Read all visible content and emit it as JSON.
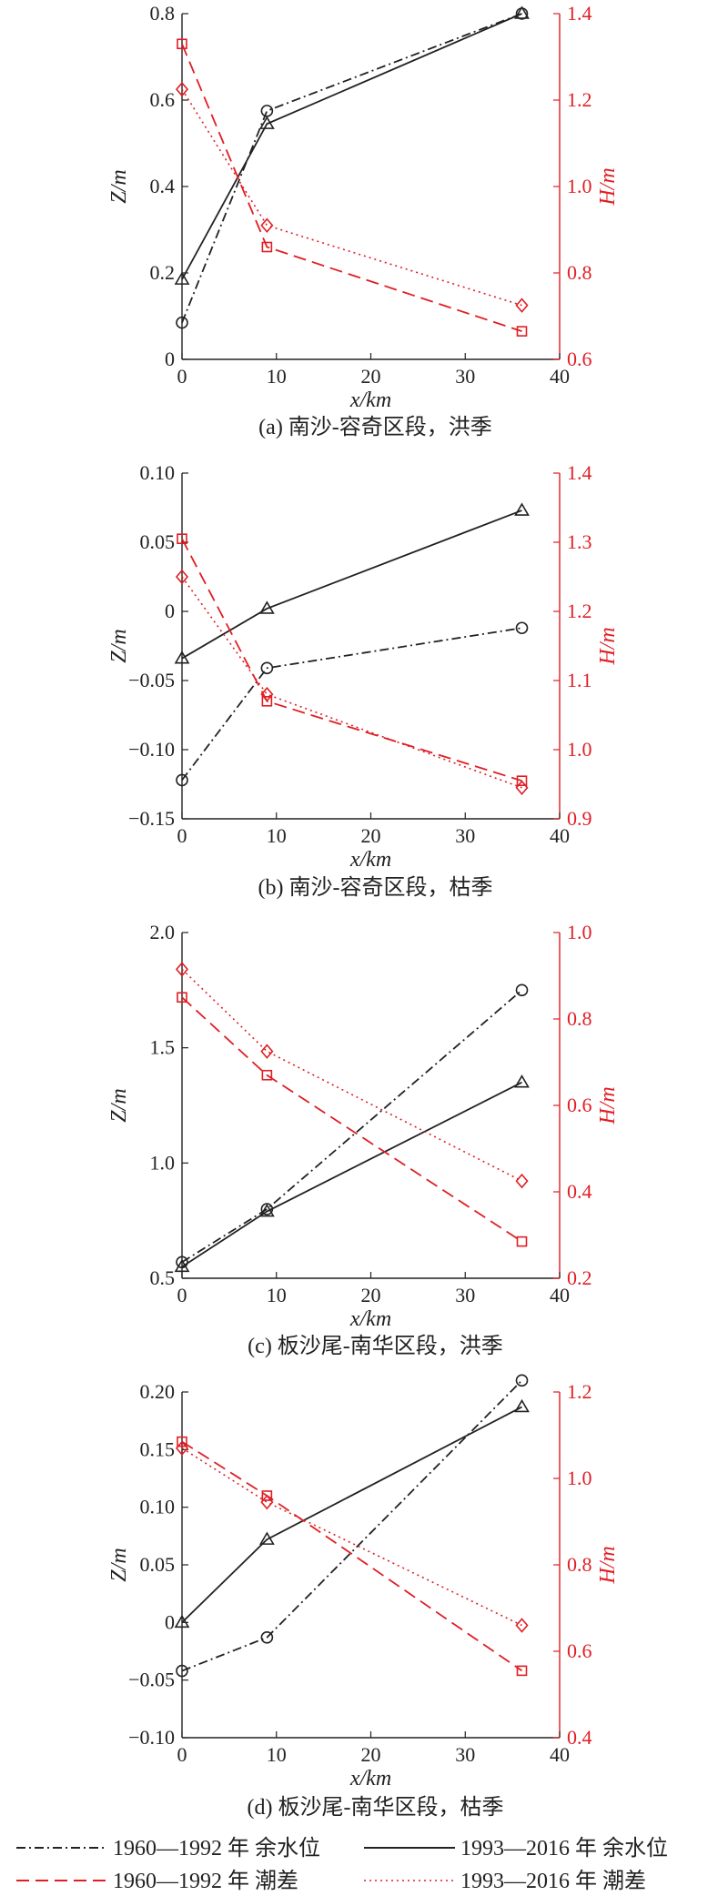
{
  "colors": {
    "black": "#222222",
    "red": "#e01e24"
  },
  "legend": [
    {
      "label": "1960—1992 年 余水位",
      "style": "dashdot",
      "color": "#222222"
    },
    {
      "label": "1993—2016 年 余水位",
      "style": "solid",
      "color": "#222222"
    },
    {
      "label": "1960—1992 年 潮差",
      "style": "dashed",
      "color": "#e01e24"
    },
    {
      "label": "1993—2016 年 潮差",
      "style": "dotted",
      "color": "#e01e24"
    }
  ],
  "chart_data": [
    {
      "type": "line",
      "caption": "(a) 南沙-容奇区段，洪季",
      "xlabel": "x/km",
      "ylabel_left": "Z/m",
      "ylabel_right": "H/m",
      "x": [
        0,
        9,
        36
      ],
      "xlim": [
        0,
        40
      ],
      "xticks": [
        0,
        10,
        20,
        30,
        40
      ],
      "xtick_labels": [
        "0",
        "10",
        "20",
        "30",
        "40"
      ],
      "ylim_left": [
        0,
        0.8
      ],
      "yticks_left": [
        0,
        0.2,
        0.4,
        0.6,
        0.8
      ],
      "ytick_labels_left": [
        "0",
        "0.2",
        "0.4",
        "0.6",
        "0.8"
      ],
      "ylim_right": [
        0.6,
        1.4
      ],
      "yticks_right": [
        0.6,
        0.8,
        1.0,
        1.2,
        1.4
      ],
      "ytick_labels_right": [
        "0.6",
        "0.8",
        "1.0",
        "1.2",
        "1.4"
      ],
      "series": [
        {
          "axis": "left",
          "legend_index": 0,
          "style": "dashdot",
          "marker": "circle",
          "color": "#222222",
          "values": [
            0.085,
            0.575,
            0.8
          ]
        },
        {
          "axis": "left",
          "legend_index": 1,
          "style": "solid",
          "marker": "triangle",
          "color": "#222222",
          "values": [
            0.185,
            0.545,
            0.8
          ]
        },
        {
          "axis": "right",
          "legend_index": 2,
          "style": "dashed",
          "marker": "square",
          "color": "#e01e24",
          "values": [
            1.33,
            0.86,
            0.665
          ]
        },
        {
          "axis": "right",
          "legend_index": 3,
          "style": "dotted",
          "marker": "diamond",
          "color": "#e01e24",
          "values": [
            1.225,
            0.91,
            0.725
          ]
        }
      ]
    },
    {
      "type": "line",
      "caption": "(b) 南沙-容奇区段，枯季",
      "xlabel": "x/km",
      "ylabel_left": "Z/m",
      "ylabel_right": "H/m",
      "x": [
        0,
        9,
        36
      ],
      "xlim": [
        0,
        40
      ],
      "xticks": [
        0,
        10,
        20,
        30,
        40
      ],
      "xtick_labels": [
        "0",
        "10",
        "20",
        "30",
        "40"
      ],
      "ylim_left": [
        -0.15,
        0.1
      ],
      "yticks_left": [
        -0.15,
        -0.1,
        -0.05,
        0,
        0.05,
        0.1
      ],
      "ytick_labels_left": [
        "−0.15",
        "−0.10",
        "−0.05",
        "0",
        "0.05",
        "0.10"
      ],
      "ylim_right": [
        0.9,
        1.4
      ],
      "yticks_right": [
        0.9,
        1.0,
        1.1,
        1.2,
        1.3,
        1.4
      ],
      "ytick_labels_right": [
        "0.9",
        "1.0",
        "1.1",
        "1.2",
        "1.3",
        "1.4"
      ],
      "series": [
        {
          "axis": "left",
          "legend_index": 0,
          "style": "dashdot",
          "marker": "circle",
          "color": "#222222",
          "values": [
            -0.122,
            -0.041,
            -0.012
          ]
        },
        {
          "axis": "left",
          "legend_index": 1,
          "style": "solid",
          "marker": "triangle",
          "color": "#222222",
          "values": [
            -0.034,
            0.002,
            0.073
          ]
        },
        {
          "axis": "right",
          "legend_index": 2,
          "style": "dashed",
          "marker": "square",
          "color": "#e01e24",
          "values": [
            1.305,
            1.07,
            0.955
          ]
        },
        {
          "axis": "right",
          "legend_index": 3,
          "style": "dotted",
          "marker": "diamond",
          "color": "#e01e24",
          "values": [
            1.25,
            1.08,
            0.945
          ]
        }
      ]
    },
    {
      "type": "line",
      "caption": "(c) 板沙尾-南华区段，洪季",
      "xlabel": "x/km",
      "ylabel_left": "Z/m",
      "ylabel_right": "H/m",
      "x": [
        0,
        9,
        36
      ],
      "xlim": [
        0,
        40
      ],
      "xticks": [
        0,
        10,
        20,
        30,
        40
      ],
      "xtick_labels": [
        "0",
        "10",
        "20",
        "30",
        "40"
      ],
      "ylim_left": [
        0.5,
        2.0
      ],
      "yticks_left": [
        0.5,
        1.0,
        1.5,
        2.0
      ],
      "ytick_labels_left": [
        "0.5",
        "1.0",
        "1.5",
        "2.0"
      ],
      "ylim_right": [
        0.2,
        1.0
      ],
      "yticks_right": [
        0.2,
        0.4,
        0.6,
        0.8,
        1.0
      ],
      "ytick_labels_right": [
        "0.2",
        "0.4",
        "0.6",
        "0.8",
        "1.0"
      ],
      "series": [
        {
          "axis": "left",
          "legend_index": 0,
          "style": "dashdot",
          "marker": "circle",
          "color": "#222222",
          "values": [
            0.57,
            0.8,
            1.75
          ]
        },
        {
          "axis": "left",
          "legend_index": 1,
          "style": "solid",
          "marker": "triangle",
          "color": "#222222",
          "values": [
            0.55,
            0.79,
            1.35
          ]
        },
        {
          "axis": "right",
          "legend_index": 2,
          "style": "dashed",
          "marker": "square",
          "color": "#e01e24",
          "values": [
            0.85,
            0.67,
            0.285
          ]
        },
        {
          "axis": "right",
          "legend_index": 3,
          "style": "dotted",
          "marker": "diamond",
          "color": "#e01e24",
          "values": [
            0.915,
            0.725,
            0.425
          ]
        }
      ]
    },
    {
      "type": "line",
      "caption": "(d) 板沙尾-南华区段，枯季",
      "xlabel": "x/km",
      "ylabel_left": "Z/m",
      "ylabel_right": "H/m",
      "x": [
        0,
        9,
        36
      ],
      "xlim": [
        0,
        40
      ],
      "xticks": [
        0,
        10,
        20,
        30,
        40
      ],
      "xtick_labels": [
        "0",
        "10",
        "20",
        "30",
        "40"
      ],
      "ylim_left": [
        -0.1,
        0.2
      ],
      "yticks_left": [
        -0.1,
        -0.05,
        0,
        0.05,
        0.1,
        0.15,
        0.2
      ],
      "ytick_labels_left": [
        "−0.10",
        "−0.05",
        "0",
        "0.05",
        "0.10",
        "0.15",
        "0.20"
      ],
      "ylim_right": [
        0.4,
        1.2
      ],
      "yticks_right": [
        0.4,
        0.6,
        0.8,
        1.0,
        1.2
      ],
      "ytick_labels_right": [
        "0.4",
        "0.6",
        "0.8",
        "1.0",
        "1.2"
      ],
      "series": [
        {
          "axis": "left",
          "legend_index": 0,
          "style": "dashdot",
          "marker": "circle",
          "color": "#222222",
          "values": [
            -0.042,
            -0.013,
            0.21
          ]
        },
        {
          "axis": "left",
          "legend_index": 1,
          "style": "solid",
          "marker": "triangle",
          "color": "#222222",
          "values": [
            0.0,
            0.072,
            0.187
          ]
        },
        {
          "axis": "right",
          "legend_index": 2,
          "style": "dashed",
          "marker": "square",
          "color": "#e01e24",
          "values": [
            1.085,
            0.96,
            0.555
          ]
        },
        {
          "axis": "right",
          "legend_index": 3,
          "style": "dotted",
          "marker": "diamond",
          "color": "#e01e24",
          "values": [
            1.07,
            0.945,
            0.66
          ]
        }
      ]
    }
  ]
}
